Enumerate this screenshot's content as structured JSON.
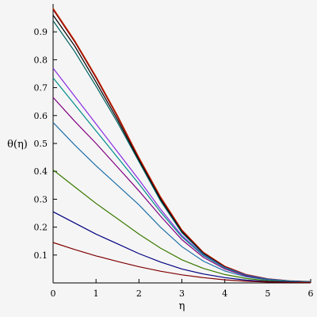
{
  "chart_data": {
    "type": "line",
    "title": "",
    "xlabel": "η",
    "ylabel": "θ(η)",
    "xlim": [
      0,
      6
    ],
    "ylim": [
      0,
      1
    ],
    "x_ticks": [
      0,
      1,
      2,
      3,
      4,
      5,
      6
    ],
    "y_ticks": [
      0.1,
      0.2,
      0.3,
      0.4,
      0.5,
      0.6,
      0.7,
      0.8,
      0.9
    ],
    "x_tick_labels": [
      "0",
      "1",
      "2",
      "3",
      "4",
      "5",
      "6"
    ],
    "y_tick_labels": [
      "0.1",
      "0.2",
      "0.3",
      "0.4",
      "0.5",
      "0.6",
      "0.7",
      "0.8",
      "0.9"
    ],
    "grid": false,
    "legend": "none",
    "x": [
      0,
      0.5,
      1,
      1.5,
      2,
      2.5,
      3,
      3.5,
      4,
      4.5,
      5,
      5.5,
      6
    ],
    "series": [
      {
        "color": "#cc3300",
        "values": [
          0.985,
          0.87,
          0.74,
          0.6,
          0.45,
          0.31,
          0.19,
          0.11,
          0.06,
          0.03,
          0.015,
          0.008,
          0.005
        ]
      },
      {
        "color": "#8b0000",
        "values": [
          0.98,
          0.865,
          0.735,
          0.595,
          0.445,
          0.305,
          0.187,
          0.108,
          0.058,
          0.029,
          0.014,
          0.007,
          0.004
        ]
      },
      {
        "color": "#000000",
        "values": [
          0.96,
          0.85,
          0.72,
          0.585,
          0.44,
          0.3,
          0.183,
          0.105,
          0.056,
          0.028,
          0.014,
          0.007,
          0.004
        ]
      },
      {
        "color": "#006060",
        "values": [
          0.94,
          0.83,
          0.705,
          0.575,
          0.435,
          0.295,
          0.18,
          0.104,
          0.055,
          0.027,
          0.013,
          0.007,
          0.004
        ]
      },
      {
        "color": "#8a2be2",
        "values": [
          0.77,
          0.67,
          0.57,
          0.47,
          0.37,
          0.265,
          0.17,
          0.1,
          0.055,
          0.028,
          0.014,
          0.007,
          0.004
        ]
      },
      {
        "color": "#008b8b",
        "values": [
          0.735,
          0.64,
          0.545,
          0.45,
          0.355,
          0.255,
          0.165,
          0.098,
          0.054,
          0.027,
          0.013,
          0.007,
          0.004
        ]
      },
      {
        "color": "#800080",
        "values": [
          0.665,
          0.58,
          0.5,
          0.415,
          0.33,
          0.24,
          0.155,
          0.092,
          0.05,
          0.025,
          0.012,
          0.006,
          0.003
        ]
      },
      {
        "color": "#1e6fa8",
        "values": [
          0.575,
          0.495,
          0.42,
          0.35,
          0.28,
          0.2,
          0.13,
          0.078,
          0.043,
          0.022,
          0.011,
          0.006,
          0.003
        ]
      },
      {
        "color": "#3a7a00",
        "values": [
          0.405,
          0.345,
          0.285,
          0.23,
          0.175,
          0.125,
          0.083,
          0.052,
          0.03,
          0.016,
          0.008,
          0.004,
          0.002
        ]
      },
      {
        "color": "#000080",
        "values": [
          0.255,
          0.215,
          0.175,
          0.14,
          0.105,
          0.075,
          0.05,
          0.032,
          0.019,
          0.01,
          0.005,
          0.003,
          0.001
        ]
      },
      {
        "color": "#800000",
        "values": [
          0.145,
          0.12,
          0.097,
          0.077,
          0.058,
          0.042,
          0.029,
          0.019,
          0.011,
          0.006,
          0.003,
          0.002,
          0.001
        ]
      }
    ]
  }
}
